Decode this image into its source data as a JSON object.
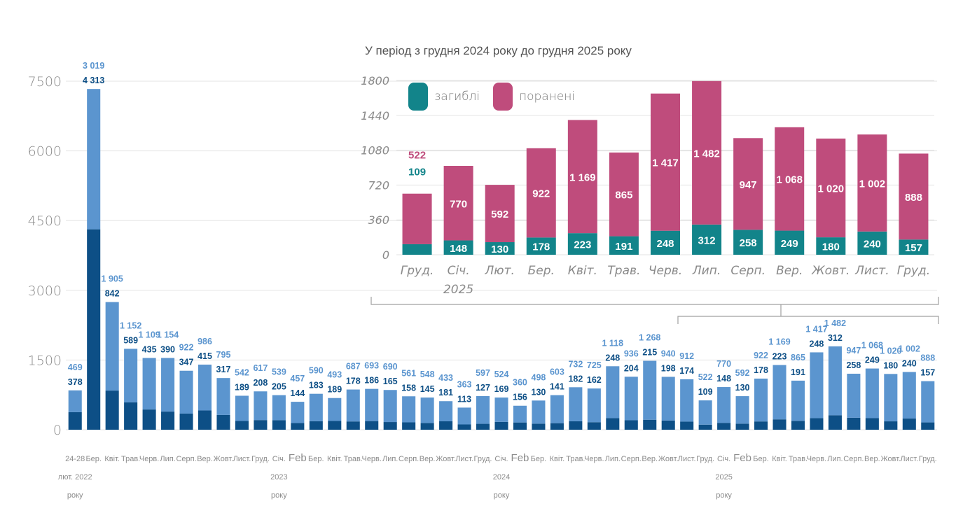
{
  "chart_data": [
    {
      "type": "bar",
      "stacked": true,
      "title": "",
      "xlabel": "",
      "ylabel": "",
      "ylim": [
        0,
        7500
      ],
      "yticks": [
        0,
        1500,
        3000,
        4500,
        6000,
        7500
      ],
      "grid": true,
      "categories": [
        "24-28",
        "Бер.",
        "Квіт.",
        "Трав.",
        "Черв.",
        "Лип.",
        "Серп.",
        "Вер.",
        "Жовт.",
        "Лист.",
        "Груд.",
        "Січ.",
        "Feb",
        "Бер.",
        "Квіт.",
        "Трав.",
        "Черв.",
        "Лип.",
        "Серп.",
        "Вер.",
        "Жовт.",
        "Лист.",
        "Груд.",
        "Січ.",
        "Feb",
        "Бер.",
        "Квіт.",
        "Трав.",
        "Черв.",
        "Лип.",
        "Серп.",
        "Вер.",
        "Жовт.",
        "Лист.",
        "Груд.",
        "Січ.",
        "Feb",
        "Бер.",
        "Квіт.",
        "Трав.",
        "Черв.",
        "Лип.",
        "Серп.",
        "Вер.",
        "Жовт.",
        "Лист.",
        "Груд."
      ],
      "sublabels": [
        {
          "index": 0,
          "lines": [
            "лют. 2022",
            "року"
          ]
        },
        {
          "index": 11,
          "lines": [
            "2023",
            "року"
          ]
        },
        {
          "index": 23,
          "lines": [
            "2024",
            "року"
          ]
        },
        {
          "index": 35,
          "lines": [
            "2025",
            "року"
          ]
        }
      ],
      "series": [
        {
          "name": "загиблі",
          "color": "#0d4f86",
          "values": [
            378,
            4313,
            842,
            589,
            435,
            390,
            347,
            415,
            317,
            189,
            208,
            205,
            144,
            183,
            189,
            178,
            186,
            165,
            158,
            145,
            181,
            113,
            127,
            169,
            156,
            130,
            141,
            182,
            162,
            248,
            204,
            215,
            198,
            174,
            109,
            148,
            130,
            178,
            223,
            191,
            248,
            312,
            258,
            249,
            180,
            240,
            157
          ],
          "labels": [
            "378",
            "4 313",
            "842",
            "589",
            "435",
            "390",
            "347",
            "415",
            "317",
            "189",
            "208",
            "205",
            "144",
            "183",
            "189",
            "178",
            "186",
            "165",
            "158",
            "145",
            "181",
            "113",
            "127",
            "169",
            "156",
            "130",
            "141",
            "182",
            "162",
            "248",
            "204",
            "215",
            "198",
            "174",
            "109",
            "148",
            "130",
            "178",
            "223",
            "191",
            "248",
            "312",
            "258",
            "249",
            "180",
            "240",
            "157"
          ]
        },
        {
          "name": "поранені",
          "color": "#5b95cf",
          "values": [
            469,
            3019,
            1905,
            1152,
            1109,
            1154,
            922,
            986,
            795,
            542,
            617,
            539,
            457,
            590,
            493,
            687,
            693,
            690,
            561,
            548,
            433,
            363,
            597,
            524,
            360,
            498,
            603,
            732,
            725,
            1118,
            936,
            1268,
            940,
            912,
            522,
            770,
            592,
            922,
            1169,
            865,
            1417,
            1482,
            947,
            1068,
            1020,
            1002,
            888
          ],
          "labels": [
            "469",
            "3 019",
            "1 905",
            "1 152",
            "1 109",
            "1 154",
            "922",
            "986",
            "795",
            "542",
            "617",
            "539",
            "457",
            "590",
            "493",
            "687",
            "693",
            "690",
            "561",
            "548",
            "433",
            "363",
            "597",
            "524",
            "360",
            "498",
            "603",
            "732",
            "725",
            "1 118",
            "936",
            "1 268",
            "940",
            "912",
            "522",
            "770",
            "592",
            "922",
            "1 169",
            "865",
            "1 417",
            "1 482",
            "947",
            "1 068",
            "1 020",
            "1 002",
            "888"
          ]
        }
      ]
    },
    {
      "type": "bar",
      "stacked": true,
      "title": "У період з грудня 2024 року до грудня 2025 року",
      "xlabel": "",
      "ylabel": "",
      "ylim": [
        0,
        1800
      ],
      "yticks": [
        0,
        360,
        720,
        1080,
        1440,
        1800
      ],
      "grid": true,
      "legend": "top-left",
      "categories": [
        "Груд.",
        "Січ.",
        "Лют.",
        "Бер.",
        "Квіт.",
        "Трав.",
        "Черв.",
        "Лип.",
        "Серп.",
        "Вер.",
        "Жовт.",
        "Лист.",
        "Груд."
      ],
      "sublabels": [
        {
          "index": 1,
          "lines": [
            "2025"
          ]
        }
      ],
      "series": [
        {
          "name": "загиблі",
          "color": "#12848a",
          "values": [
            109,
            148,
            130,
            178,
            223,
            191,
            248,
            312,
            258,
            249,
            180,
            240,
            157
          ],
          "labels": [
            "109",
            "148",
            "130",
            "178",
            "223",
            "191",
            "248",
            "312",
            "258",
            "249",
            "180",
            "240",
            "157"
          ]
        },
        {
          "name": "поранені",
          "color": "#bf4c7c",
          "values": [
            522,
            770,
            592,
            922,
            1169,
            865,
            1417,
            1482,
            947,
            1068,
            1020,
            1002,
            888
          ],
          "labels": [
            "522",
            "770",
            "592",
            "922",
            "1 169",
            "865",
            "1 417",
            "1 482",
            "947",
            "1 068",
            "1 020",
            "1 002",
            "888"
          ]
        }
      ]
    }
  ]
}
